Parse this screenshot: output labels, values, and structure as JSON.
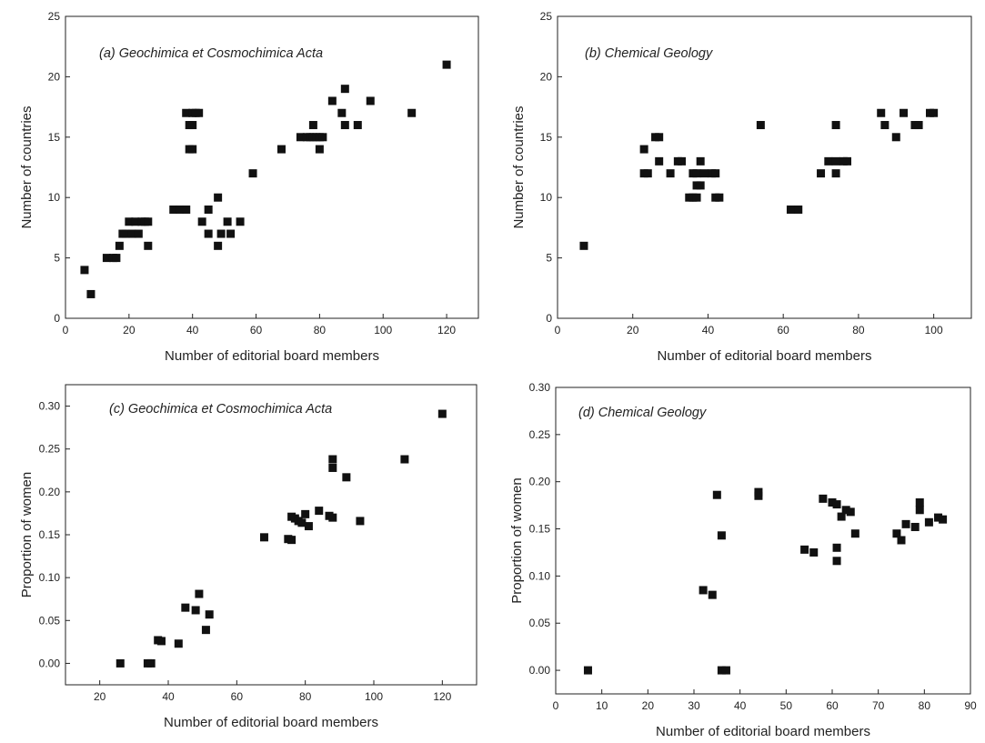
{
  "colors": {
    "marker": "#111111",
    "axis": "#222222",
    "background": "#ffffff"
  },
  "chart_data": [
    {
      "type": "scatter",
      "title": "(a) Geochimica et Cosmochimica Acta",
      "xlabel": "Number of editorial board members",
      "ylabel": "Number of countries",
      "xlim": [
        0,
        130
      ],
      "ylim": [
        0,
        25
      ],
      "xticks": [
        0,
        20,
        40,
        60,
        80,
        100,
        120
      ],
      "yticks": [
        0,
        5,
        10,
        15,
        20,
        25
      ],
      "tick_labels_x": [
        "0",
        "20",
        "40",
        "60",
        "80",
        "100",
        "120"
      ],
      "tick_labels_y": [
        "0",
        "5",
        "10",
        "15",
        "20",
        "25"
      ],
      "grid": false,
      "points": [
        [
          6,
          4
        ],
        [
          8,
          2
        ],
        [
          13,
          5
        ],
        [
          15,
          5
        ],
        [
          16,
          5
        ],
        [
          17,
          6
        ],
        [
          18,
          7
        ],
        [
          19,
          7
        ],
        [
          20,
          8
        ],
        [
          21,
          7
        ],
        [
          22,
          8
        ],
        [
          23,
          7
        ],
        [
          24,
          8
        ],
        [
          25,
          8
        ],
        [
          26,
          8
        ],
        [
          26,
          6
        ],
        [
          34,
          9
        ],
        [
          36,
          9
        ],
        [
          38,
          9
        ],
        [
          38,
          17
        ],
        [
          39,
          16
        ],
        [
          39,
          14
        ],
        [
          40,
          17
        ],
        [
          40,
          16
        ],
        [
          40,
          14
        ],
        [
          41,
          17
        ],
        [
          42,
          17
        ],
        [
          43,
          8
        ],
        [
          45,
          9
        ],
        [
          45,
          7
        ],
        [
          48,
          10
        ],
        [
          48,
          6
        ],
        [
          49,
          7
        ],
        [
          51,
          8
        ],
        [
          52,
          7
        ],
        [
          55,
          8
        ],
        [
          59,
          12
        ],
        [
          68,
          14
        ],
        [
          74,
          15
        ],
        [
          76,
          15
        ],
        [
          77,
          15
        ],
        [
          78,
          16
        ],
        [
          78,
          15
        ],
        [
          79,
          15
        ],
        [
          80,
          15
        ],
        [
          80,
          14
        ],
        [
          81,
          15
        ],
        [
          84,
          18
        ],
        [
          87,
          17
        ],
        [
          88,
          19
        ],
        [
          88,
          16
        ],
        [
          92,
          16
        ],
        [
          96,
          18
        ],
        [
          109,
          17
        ],
        [
          120,
          21
        ]
      ]
    },
    {
      "type": "scatter",
      "title": "(b) Chemical Geology",
      "xlabel": "Number of editorial board members",
      "ylabel": "Number of countries",
      "xlim": [
        0,
        110
      ],
      "ylim": [
        0,
        25
      ],
      "xticks": [
        0,
        20,
        40,
        60,
        80,
        100
      ],
      "yticks": [
        0,
        5,
        10,
        15,
        20,
        25
      ],
      "tick_labels_x": [
        "0",
        "20",
        "40",
        "60",
        "80",
        "100"
      ],
      "tick_labels_y": [
        "0",
        "5",
        "10",
        "15",
        "20",
        "25"
      ],
      "grid": false,
      "points": [
        [
          7,
          6
        ],
        [
          23,
          14
        ],
        [
          23,
          12
        ],
        [
          24,
          12
        ],
        [
          26,
          15
        ],
        [
          27,
          15
        ],
        [
          27,
          13
        ],
        [
          30,
          12
        ],
        [
          32,
          13
        ],
        [
          33,
          13
        ],
        [
          35,
          10
        ],
        [
          36,
          12
        ],
        [
          36,
          10
        ],
        [
          37,
          12
        ],
        [
          37,
          10
        ],
        [
          37,
          11
        ],
        [
          38,
          11
        ],
        [
          38,
          13
        ],
        [
          39,
          12
        ],
        [
          41,
          12
        ],
        [
          42,
          12
        ],
        [
          42,
          10
        ],
        [
          43,
          10
        ],
        [
          54,
          16
        ],
        [
          62,
          9
        ],
        [
          64,
          9
        ],
        [
          70,
          12
        ],
        [
          72,
          13
        ],
        [
          74,
          13
        ],
        [
          74,
          12
        ],
        [
          74,
          16
        ],
        [
          76,
          13
        ],
        [
          77,
          13
        ],
        [
          86,
          17
        ],
        [
          87,
          16
        ],
        [
          90,
          15
        ],
        [
          92,
          17
        ],
        [
          95,
          16
        ],
        [
          96,
          16
        ],
        [
          99,
          17
        ],
        [
          100,
          17
        ]
      ]
    },
    {
      "type": "scatter",
      "title": "(c) Geochimica et Cosmochimica Acta",
      "xlabel": "Number of editorial board members",
      "ylabel": "Proportion of women",
      "xlim": [
        10,
        130
      ],
      "ylim": [
        -0.025,
        0.325
      ],
      "xticks": [
        20,
        40,
        60,
        80,
        100,
        120
      ],
      "yticks": [
        0,
        0.05,
        0.1,
        0.15,
        0.2,
        0.25,
        0.3
      ],
      "tick_labels_x": [
        "20",
        "40",
        "60",
        "80",
        "100",
        "120"
      ],
      "tick_labels_y": [
        "0.00",
        "0.05",
        "0.10",
        "0.15",
        "0.20",
        "0.25",
        "0.30"
      ],
      "grid": false,
      "points": [
        [
          26,
          0.0
        ],
        [
          34,
          0.0
        ],
        [
          35,
          0.0
        ],
        [
          37,
          0.027
        ],
        [
          38,
          0.026
        ],
        [
          43,
          0.023
        ],
        [
          45,
          0.065
        ],
        [
          48,
          0.062
        ],
        [
          49,
          0.081
        ],
        [
          51,
          0.039
        ],
        [
          52,
          0.057
        ],
        [
          68,
          0.147
        ],
        [
          75,
          0.145
        ],
        [
          76,
          0.144
        ],
        [
          76,
          0.171
        ],
        [
          77,
          0.169
        ],
        [
          78,
          0.166
        ],
        [
          79,
          0.164
        ],
        [
          80,
          0.174
        ],
        [
          81,
          0.16
        ],
        [
          84,
          0.178
        ],
        [
          87,
          0.172
        ],
        [
          88,
          0.17
        ],
        [
          88,
          0.228
        ],
        [
          88,
          0.238
        ],
        [
          92,
          0.217
        ],
        [
          96,
          0.166
        ],
        [
          109,
          0.238
        ],
        [
          120,
          0.291
        ]
      ]
    },
    {
      "type": "scatter",
      "title": "(d) Chemical Geology",
      "xlabel": "Number of editorial board members",
      "ylabel": "Proportion of women",
      "xlim": [
        0,
        90
      ],
      "ylim": [
        -0.025,
        0.3
      ],
      "xticks": [
        0,
        10,
        20,
        30,
        40,
        50,
        60,
        70,
        80,
        90
      ],
      "yticks": [
        0,
        0.05,
        0.1,
        0.15,
        0.2,
        0.25,
        0.3
      ],
      "tick_labels_x": [
        "0",
        "10",
        "20",
        "30",
        "40",
        "50",
        "60",
        "70",
        "80",
        "90"
      ],
      "tick_labels_y": [
        "0.00",
        "0.05",
        "0.10",
        "0.15",
        "0.20",
        "0.25",
        "0.30"
      ],
      "grid": false,
      "points": [
        [
          7,
          0.0
        ],
        [
          32,
          0.085
        ],
        [
          34,
          0.08
        ],
        [
          35,
          0.186
        ],
        [
          36,
          0.143
        ],
        [
          36,
          0.0
        ],
        [
          37,
          0.0
        ],
        [
          44,
          0.185
        ],
        [
          44,
          0.189
        ],
        [
          54,
          0.128
        ],
        [
          56,
          0.125
        ],
        [
          58,
          0.182
        ],
        [
          60,
          0.178
        ],
        [
          61,
          0.176
        ],
        [
          61,
          0.13
        ],
        [
          61,
          0.116
        ],
        [
          62,
          0.163
        ],
        [
          63,
          0.17
        ],
        [
          64,
          0.168
        ],
        [
          65,
          0.145
        ],
        [
          74,
          0.145
        ],
        [
          75,
          0.138
        ],
        [
          76,
          0.155
        ],
        [
          78,
          0.152
        ],
        [
          79,
          0.17
        ],
        [
          79,
          0.178
        ],
        [
          81,
          0.157
        ],
        [
          83,
          0.162
        ],
        [
          84,
          0.16
        ]
      ]
    }
  ]
}
